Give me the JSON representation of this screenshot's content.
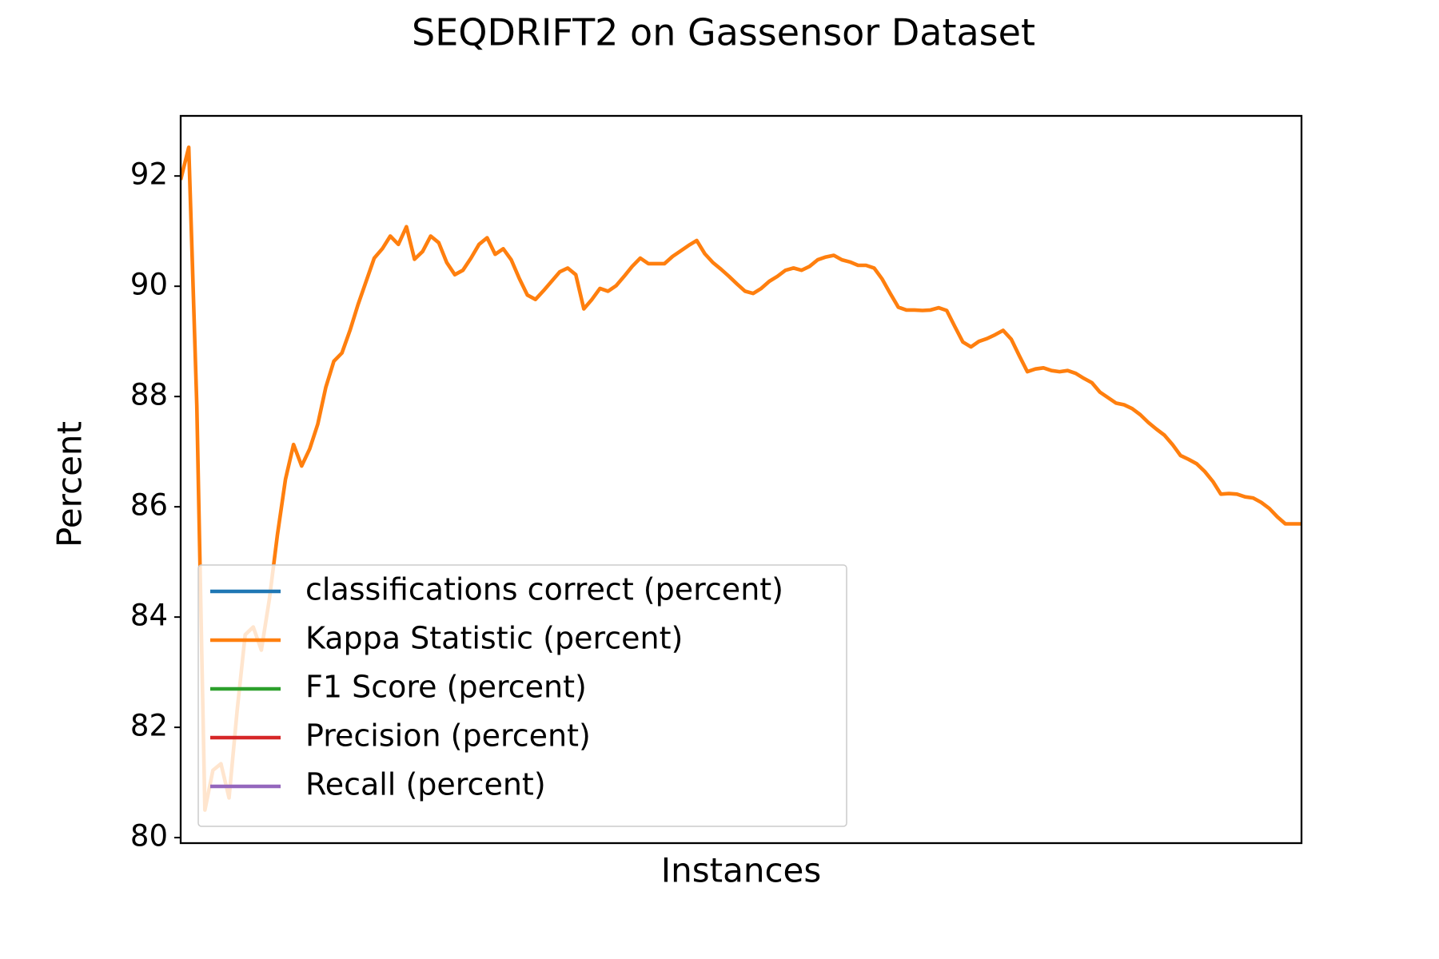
{
  "chart_data": {
    "type": "line",
    "title": "SEQDRIFT2 on Gassensor Dataset",
    "xlabel": "Instances",
    "ylabel": "Percent",
    "ylim": [
      79.9,
      93.09
    ],
    "yticks": [
      80,
      82,
      84,
      86,
      88,
      90,
      92
    ],
    "legend": "lower left",
    "series": [
      {
        "name": "classifications correct (percent)",
        "color": "#1f77b4",
        "values": [
          null,
          null,
          null,
          null,
          null,
          null,
          null,
          null,
          null,
          null,
          null,
          null,
          null,
          null,
          null,
          null,
          null,
          null,
          null,
          null,
          null,
          null,
          null,
          null,
          null,
          null,
          null,
          null,
          null,
          null,
          null,
          null,
          null,
          null,
          null,
          null,
          null,
          null,
          null,
          null,
          null,
          null,
          null,
          null,
          null,
          null,
          null,
          null,
          null,
          null,
          null,
          null,
          null,
          null,
          null,
          null,
          null,
          null,
          null,
          null,
          null,
          null,
          null,
          null,
          null,
          null,
          null,
          null,
          null,
          null,
          null,
          null,
          null,
          null,
          null,
          null,
          null,
          null,
          null,
          null,
          null,
          null,
          null,
          null,
          null,
          null,
          null,
          null,
          null,
          null,
          null,
          null,
          null,
          null,
          null,
          null,
          null,
          null,
          null,
          null,
          null,
          null,
          null,
          null,
          null,
          null,
          null,
          null,
          null,
          null,
          null,
          null,
          null,
          null,
          null,
          null,
          null,
          null,
          null,
          null,
          null,
          null,
          null,
          null,
          null,
          null,
          null,
          null,
          null,
          null,
          null,
          null,
          null,
          null,
          null,
          null,
          null,
          null,
          null,
          null
        ]
      },
      {
        "name": "Kappa Statistic (percent)",
        "color": "#ff7f0e",
        "values": [
          91.93,
          92.52,
          87.83,
          80.5,
          81.22,
          81.34,
          80.72,
          82.3,
          83.68,
          83.82,
          83.4,
          84.32,
          85.49,
          86.5,
          87.13,
          86.74,
          87.05,
          87.5,
          88.17,
          88.64,
          88.79,
          89.2,
          89.67,
          90.09,
          90.51,
          90.68,
          90.91,
          90.76,
          91.08,
          90.49,
          90.63,
          90.91,
          90.79,
          90.43,
          90.21,
          90.29,
          90.51,
          90.76,
          90.88,
          90.58,
          90.68,
          90.48,
          90.14,
          89.84,
          89.76,
          89.92,
          90.09,
          90.26,
          90.33,
          90.21,
          89.59,
          89.76,
          89.96,
          89.91,
          90.01,
          90.18,
          90.36,
          90.51,
          90.41,
          90.41,
          90.41,
          90.54,
          90.64,
          90.74,
          90.83,
          90.59,
          90.43,
          90.31,
          90.18,
          90.04,
          89.91,
          89.87,
          89.96,
          90.09,
          90.18,
          90.29,
          90.33,
          90.29,
          90.36,
          90.48,
          90.53,
          90.56,
          90.48,
          90.44,
          90.38,
          90.38,
          90.33,
          90.13,
          89.87,
          89.62,
          89.57,
          89.57,
          89.56,
          89.57,
          89.61,
          89.56,
          89.27,
          88.99,
          88.9,
          89.0,
          89.05,
          89.12,
          89.2,
          89.04,
          88.74,
          88.45,
          88.5,
          88.52,
          88.47,
          88.45,
          88.47,
          88.42,
          88.33,
          88.25,
          88.08,
          87.98,
          87.88,
          87.85,
          87.78,
          87.67,
          87.53,
          87.41,
          87.3,
          87.13,
          86.93,
          86.86,
          86.78,
          86.64,
          86.46,
          86.23,
          86.24,
          86.23,
          86.18,
          86.16,
          86.08,
          85.97,
          85.82,
          85.69,
          85.69,
          85.69
        ]
      },
      {
        "name": "F1 Score (percent)",
        "color": "#2ca02c",
        "values": [
          null,
          null,
          null,
          null,
          null,
          null,
          null,
          null,
          null,
          null,
          null,
          null,
          null,
          null,
          null,
          null,
          null,
          null,
          null,
          null,
          null,
          null,
          null,
          null,
          null,
          null,
          null,
          null,
          null,
          null,
          null,
          null,
          null,
          null,
          null,
          null,
          null,
          null,
          null,
          null,
          null,
          null,
          null,
          null,
          null,
          null,
          null,
          null,
          null,
          null,
          null,
          null,
          null,
          null,
          null,
          null,
          null,
          null,
          null,
          null,
          null,
          null,
          null,
          null,
          null,
          null,
          null,
          null,
          null,
          null,
          null,
          null,
          null,
          null,
          null,
          null,
          null,
          null,
          null,
          null,
          null,
          null,
          null,
          null,
          null,
          null,
          null,
          null,
          null,
          null,
          null,
          null,
          null,
          null,
          null,
          null,
          null,
          null,
          null,
          null,
          null,
          null,
          null,
          null,
          null,
          null,
          null,
          null,
          null,
          null,
          null,
          null,
          null,
          null,
          null,
          null,
          null,
          null,
          null,
          null,
          null,
          null,
          null,
          null,
          null,
          null,
          null,
          null,
          null,
          null,
          null,
          null,
          null,
          null,
          null,
          null,
          null,
          null,
          null,
          null
        ]
      },
      {
        "name": "Precision (percent)",
        "color": "#d62728",
        "values": [
          null,
          null,
          null,
          null,
          null,
          null,
          null,
          null,
          null,
          null,
          null,
          null,
          null,
          null,
          null,
          null,
          null,
          null,
          null,
          null,
          null,
          null,
          null,
          null,
          null,
          null,
          null,
          null,
          null,
          null,
          null,
          null,
          null,
          null,
          null,
          null,
          null,
          null,
          null,
          null,
          null,
          null,
          null,
          null,
          null,
          null,
          null,
          null,
          null,
          null,
          null,
          null,
          null,
          null,
          null,
          null,
          null,
          null,
          null,
          null,
          null,
          null,
          null,
          null,
          null,
          null,
          null,
          null,
          null,
          null,
          null,
          null,
          null,
          null,
          null,
          null,
          null,
          null,
          null,
          null,
          null,
          null,
          null,
          null,
          null,
          null,
          null,
          null,
          null,
          null,
          null,
          null,
          null,
          null,
          null,
          null,
          null,
          null,
          null,
          null,
          null,
          null,
          null,
          null,
          null,
          null,
          null,
          null,
          null,
          null,
          null,
          null,
          null,
          null,
          null,
          null,
          null,
          null,
          null,
          null,
          null,
          null,
          null,
          null,
          null,
          null,
          null,
          null,
          null,
          null,
          null,
          null,
          null,
          null,
          null,
          null,
          null,
          null,
          null,
          null
        ]
      },
      {
        "name": "Recall (percent)",
        "color": "#9467bd",
        "values": [
          null,
          null,
          null,
          null,
          null,
          null,
          null,
          null,
          null,
          null,
          null,
          null,
          null,
          null,
          null,
          null,
          null,
          null,
          null,
          null,
          null,
          null,
          null,
          null,
          null,
          null,
          null,
          null,
          null,
          null,
          null,
          null,
          null,
          null,
          null,
          null,
          null,
          null,
          null,
          null,
          null,
          null,
          null,
          null,
          null,
          null,
          null,
          null,
          null,
          null,
          null,
          null,
          null,
          null,
          null,
          null,
          null,
          null,
          null,
          null,
          null,
          null,
          null,
          null,
          null,
          null,
          null,
          null,
          null,
          null,
          null,
          null,
          null,
          null,
          null,
          null,
          null,
          null,
          null,
          null,
          null,
          null,
          null,
          null,
          null,
          null,
          null,
          null,
          null,
          null,
          null,
          null,
          null,
          null,
          null,
          null,
          null,
          null,
          null,
          null,
          null,
          null,
          null,
          null,
          null,
          null,
          null,
          null,
          null,
          null,
          null,
          null,
          null,
          null,
          null,
          null,
          null,
          null,
          null,
          null,
          null,
          null,
          null,
          null,
          null,
          null,
          null,
          null,
          null,
          null,
          null,
          null,
          null,
          null,
          null,
          null,
          null,
          null,
          null,
          null
        ]
      }
    ]
  }
}
